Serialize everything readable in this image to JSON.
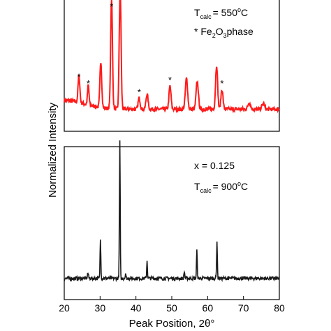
{
  "chart_data": {
    "type": "line",
    "xlabel": "Peak Position, 2θ°",
    "ylabel": "Normalized Intensity",
    "xlim": [
      20,
      80
    ],
    "x_ticks": [
      20,
      30,
      40,
      50,
      60,
      70,
      80
    ],
    "panels": [
      {
        "id": "top",
        "color": "#ff1a1a",
        "annotations": {
          "tcalc_main": "T",
          "tcalc_sub": "calc",
          "tcalc_value": "= 550",
          "tcalc_degree": "o",
          "tcalc_unit": "C",
          "phase_star": "* Fe",
          "phase_sub1": "2",
          "phase_o": "O",
          "phase_sub2": "3",
          "phase_word": "phase"
        },
        "baseline": 0.2,
        "peaks": [
          {
            "x": 24.1,
            "h": 0.24,
            "w": 0.35,
            "star": true
          },
          {
            "x": 26.7,
            "h": 0.18,
            "w": 0.3,
            "star": true
          },
          {
            "x": 30.2,
            "h": 0.42,
            "w": 0.35,
            "star": false
          },
          {
            "x": 33.2,
            "h": 1.0,
            "w": 0.35,
            "star": true
          },
          {
            "x": 35.6,
            "h": 1.15,
            "w": 0.35,
            "star": false
          },
          {
            "x": 40.9,
            "h": 0.1,
            "w": 0.4,
            "star": true
          },
          {
            "x": 43.1,
            "h": 0.14,
            "w": 0.4,
            "star": false
          },
          {
            "x": 49.5,
            "h": 0.21,
            "w": 0.4,
            "star": true
          },
          {
            "x": 54.1,
            "h": 0.28,
            "w": 0.45,
            "star": false
          },
          {
            "x": 57.1,
            "h": 0.25,
            "w": 0.45,
            "star": false
          },
          {
            "x": 62.5,
            "h": 0.4,
            "w": 0.4,
            "star": false
          },
          {
            "x": 64.0,
            "h": 0.18,
            "w": 0.4,
            "star": true
          },
          {
            "x": 71.6,
            "h": 0.06,
            "w": 0.5,
            "star": false
          },
          {
            "x": 75.5,
            "h": 0.05,
            "w": 0.5,
            "star": false
          }
        ]
      },
      {
        "id": "bottom",
        "color": "#1a1a1a",
        "annotations": {
          "x_label": "x = 0.125",
          "tcalc_main": "T",
          "tcalc_sub": "calc",
          "tcalc_value": "= 900",
          "tcalc_degree": "o",
          "tcalc_unit": "C"
        },
        "baseline": 0.12,
        "peaks": [
          {
            "x": 26.6,
            "h": 0.03,
            "w": 0.2
          },
          {
            "x": 30.1,
            "h": 0.22,
            "w": 0.15
          },
          {
            "x": 35.5,
            "h": 0.78,
            "w": 0.15
          },
          {
            "x": 37.1,
            "h": 0.03,
            "w": 0.15
          },
          {
            "x": 43.1,
            "h": 0.1,
            "w": 0.15
          },
          {
            "x": 53.5,
            "h": 0.04,
            "w": 0.15
          },
          {
            "x": 57.0,
            "h": 0.16,
            "w": 0.15
          },
          {
            "x": 62.6,
            "h": 0.21,
            "w": 0.15
          }
        ]
      }
    ]
  }
}
